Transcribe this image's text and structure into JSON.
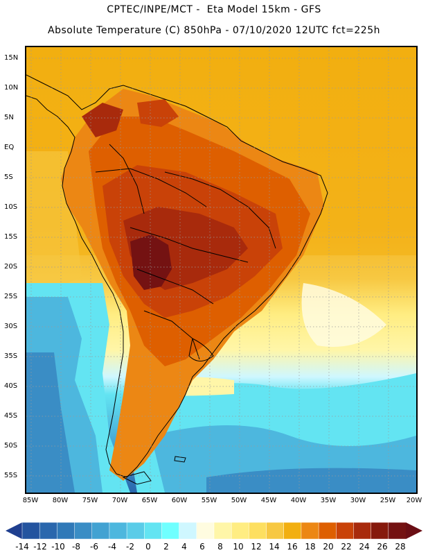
{
  "header": {
    "line1": "CPTEC/INPE/MCT -  Eta Model 15km - GFS",
    "line2": "Absolute Temperature (C) 850hPa - 07/10/2020 12UTC fct=225h"
  },
  "map": {
    "lat_labels": [
      "15N",
      "10N",
      "5N",
      "EQ",
      "5S",
      "10S",
      "15S",
      "20S",
      "25S",
      "30S",
      "35S",
      "40S",
      "45S",
      "50S",
      "55S"
    ],
    "lon_labels": [
      "85W",
      "80W",
      "75W",
      "70W",
      "65W",
      "60W",
      "55W",
      "50W",
      "45W",
      "40W",
      "35W",
      "30W",
      "25W",
      "20W"
    ],
    "colors": {
      "ocean_north": "#F0B030",
      "tropical_land": "#E07818",
      "hot_core": "#8A1E18",
      "cold_south": "#3C9CC8",
      "coastline": "#000000"
    }
  },
  "colorbar": {
    "labels": [
      "-14",
      "-12",
      "-10",
      "-8",
      "-6",
      "-4",
      "-2",
      "0",
      "2",
      "4",
      "6",
      "8",
      "10",
      "12",
      "14",
      "16",
      "18",
      "20",
      "22",
      "24",
      "26",
      "28"
    ],
    "colors": [
      "#1F3F8F",
      "#24549F",
      "#2A67AD",
      "#3079B8",
      "#3A8DC5",
      "#42A2D2",
      "#4DB7DE",
      "#5ACCE8",
      "#63E4F2",
      "#6FFFFF",
      "#CFF7FF",
      "#FFFCE0",
      "#FFF6A8",
      "#FFED82",
      "#FDDF60",
      "#F7C842",
      "#F2AF10",
      "#EC8714",
      "#DE5F00",
      "#C94208",
      "#A82A0C",
      "#86190C",
      "#741212",
      "#6A0E14"
    ]
  }
}
